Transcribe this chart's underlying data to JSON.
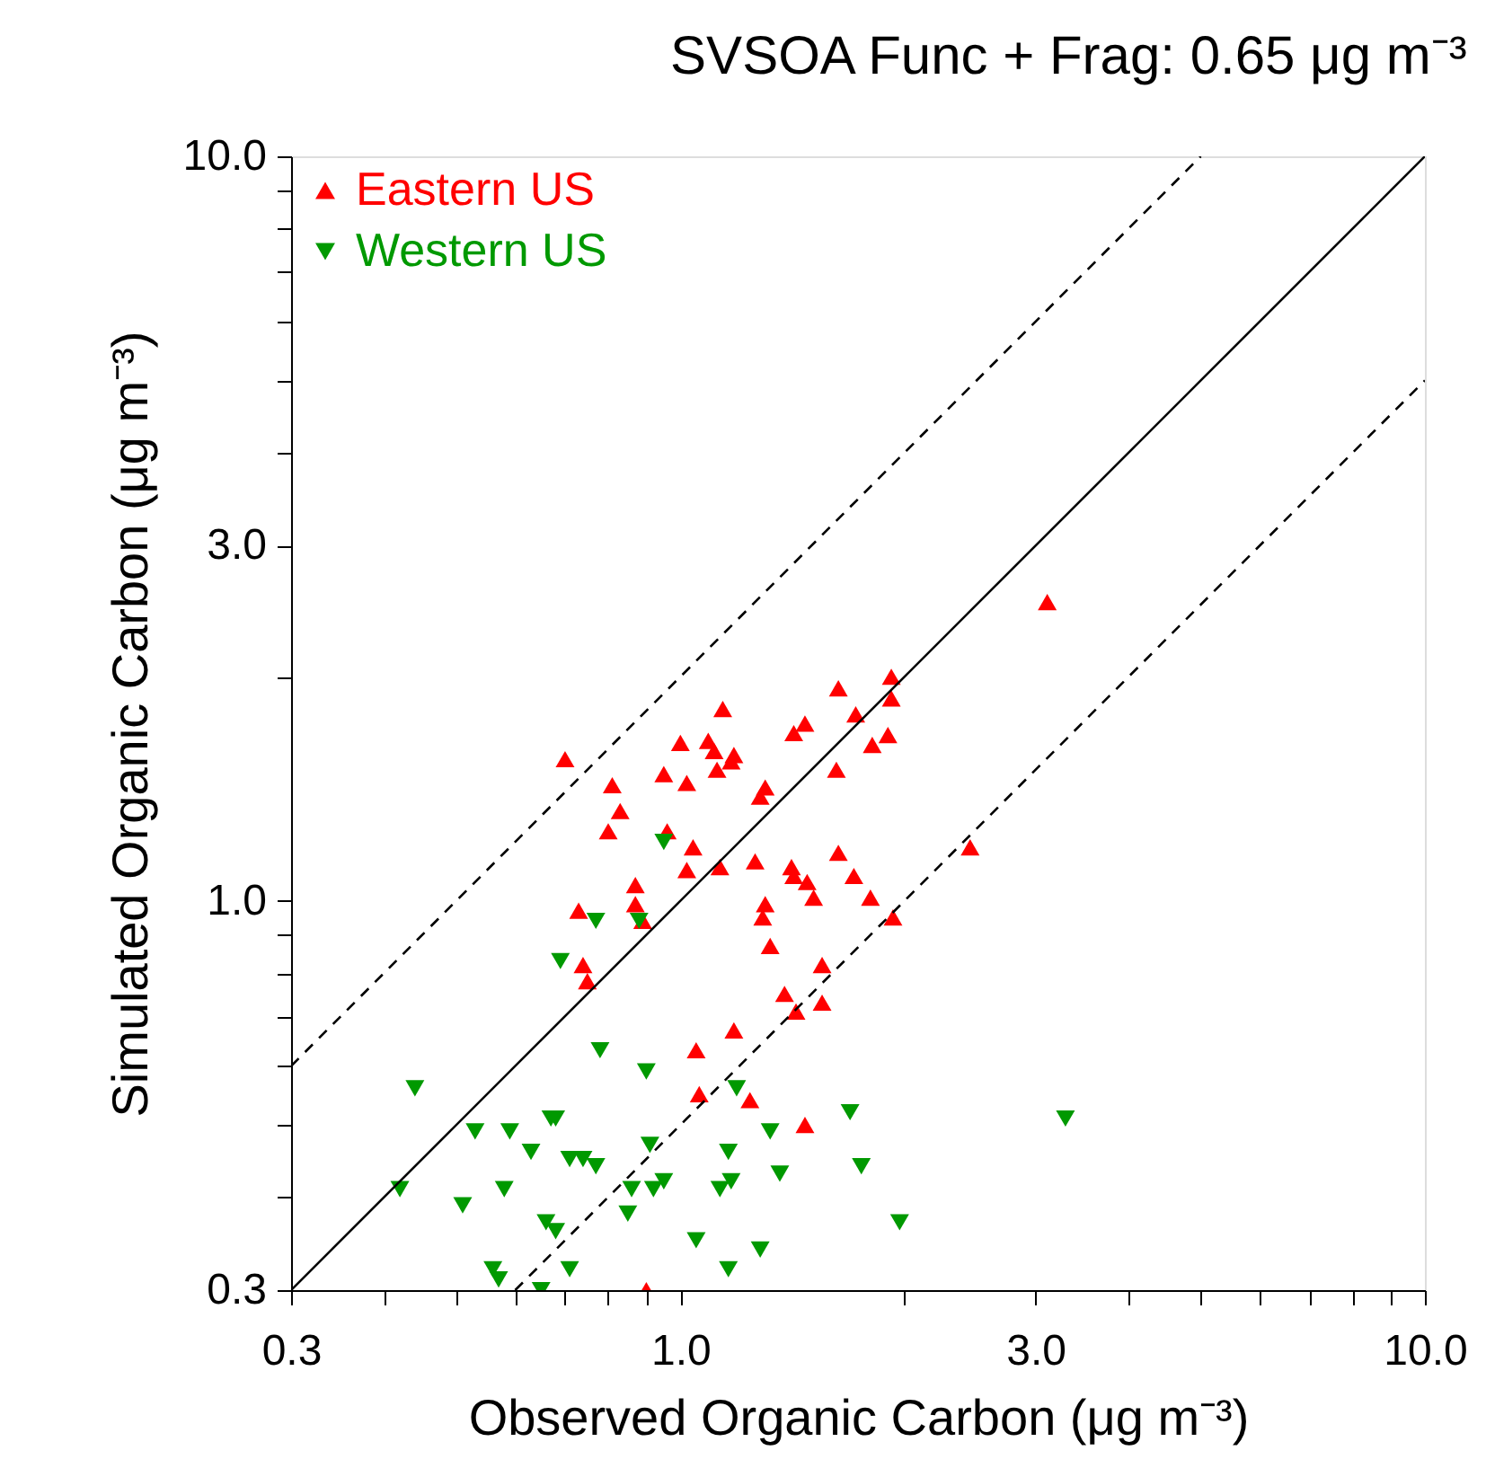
{
  "chart_data": {
    "type": "scatter",
    "title": "SVSOA Func + Frag: 0.65 μg m⁻³",
    "xlabel": "Observed Organic Carbon (μg m⁻³)",
    "ylabel": "Simulated Organic Carbon (μg m⁻³)",
    "log": "xy",
    "grid": false,
    "legend": "top left",
    "xlim": [
      0.3,
      10
    ],
    "ylim": [
      0.3,
      10
    ],
    "xticks": [
      {
        "value": 0.3,
        "label": "0.3"
      },
      {
        "value": 0.4,
        "label": null
      },
      {
        "value": 0.5,
        "label": null
      },
      {
        "value": 0.6,
        "label": null
      },
      {
        "value": 0.7,
        "label": null
      },
      {
        "value": 0.8,
        "label": null
      },
      {
        "value": 0.9,
        "label": null
      },
      {
        "value": 1,
        "label": "1.0"
      },
      {
        "value": 2,
        "label": null
      },
      {
        "value": 3,
        "label": "3.0"
      },
      {
        "value": 4,
        "label": null
      },
      {
        "value": 5,
        "label": null
      },
      {
        "value": 6,
        "label": null
      },
      {
        "value": 7,
        "label": null
      },
      {
        "value": 8,
        "label": null
      },
      {
        "value": 9,
        "label": null
      },
      {
        "value": 10,
        "label": "10.0"
      }
    ],
    "yticks": [
      {
        "value": 0.3,
        "label": "0.3"
      },
      {
        "value": 0.4,
        "label": null
      },
      {
        "value": 0.5,
        "label": null
      },
      {
        "value": 0.6,
        "label": null
      },
      {
        "value": 0.7,
        "label": null
      },
      {
        "value": 0.8,
        "label": null
      },
      {
        "value": 0.9,
        "label": null
      },
      {
        "value": 1,
        "label": "1.0"
      },
      {
        "value": 2,
        "label": null
      },
      {
        "value": 3,
        "label": "3.0"
      },
      {
        "value": 4,
        "label": null
      },
      {
        "value": 5,
        "label": null
      },
      {
        "value": 6,
        "label": null
      },
      {
        "value": 7,
        "label": null
      },
      {
        "value": 8,
        "label": null
      },
      {
        "value": 9,
        "label": null
      },
      {
        "value": 10,
        "label": "10.0"
      }
    ],
    "series": [
      {
        "name": "Eastern US",
        "color": "#ff0000",
        "marker": "triangle",
        "x": [
          3.11,
          1.63,
          1.92,
          1.92,
          1.14,
          1.72,
          1.47,
          1.42,
          1.9,
          1.81,
          1.0,
          1.09,
          1.11,
          1.18,
          1.17,
          1.12,
          0.7,
          1.62,
          0.95,
          1.02,
          0.81,
          1.3,
          1.28,
          0.83,
          0.8,
          0.96,
          1.04,
          2.45,
          1.63,
          1.26,
          1.41,
          1.13,
          1.02,
          1.42,
          1.48,
          1.71,
          0.87,
          1.51,
          1.8,
          1.3,
          0.87,
          1.29,
          1.93,
          0.73,
          0.89,
          1.32,
          0.74,
          1.55,
          0.75,
          1.38,
          1.43,
          1.55,
          1.18,
          1.05,
          1.06,
          1.24,
          1.47,
          0.9
        ],
        "values": [
          2.52,
          1.93,
          2.0,
          1.87,
          1.81,
          1.78,
          1.73,
          1.68,
          1.67,
          1.62,
          1.63,
          1.64,
          1.59,
          1.57,
          1.54,
          1.5,
          1.55,
          1.5,
          1.48,
          1.44,
          1.43,
          1.42,
          1.38,
          1.32,
          1.24,
          1.24,
          1.18,
          1.18,
          1.16,
          1.13,
          1.11,
          1.11,
          1.1,
          1.08,
          1.06,
          1.08,
          1.05,
          1.01,
          1.01,
          0.99,
          0.99,
          0.95,
          0.95,
          0.97,
          0.94,
          0.87,
          0.82,
          0.82,
          0.78,
          0.75,
          0.71,
          0.73,
          0.67,
          0.63,
          0.55,
          0.54,
          0.5,
          0.3
        ]
      },
      {
        "name": "Western US",
        "color": "#009900",
        "marker": "triangle-down",
        "x": [
          0.95,
          0.77,
          0.88,
          0.69,
          0.78,
          0.9,
          1.19,
          0.68,
          1.32,
          1.69,
          3.29,
          0.63,
          0.71,
          0.74,
          0.77,
          0.91,
          1.16,
          1.75,
          1.36,
          0.86,
          0.92,
          0.95,
          1.13,
          1.17,
          0.85,
          0.66,
          0.68,
          1.97,
          1.05,
          1.28,
          0.71,
          1.16,
          0.65,
          0.44,
          0.53,
          0.59,
          0.67,
          0.42,
          0.58,
          0.51,
          0.56,
          0.57
        ],
        "values": [
          1.2,
          0.94,
          0.94,
          0.83,
          0.63,
          0.59,
          0.56,
          0.51,
          0.49,
          0.52,
          0.51,
          0.46,
          0.45,
          0.45,
          0.44,
          0.47,
          0.46,
          0.44,
          0.43,
          0.41,
          0.41,
          0.42,
          0.41,
          0.42,
          0.38,
          0.37,
          0.36,
          0.37,
          0.35,
          0.34,
          0.32,
          0.32,
          0.3,
          0.56,
          0.49,
          0.49,
          0.51,
          0.41,
          0.41,
          0.39,
          0.32,
          0.31
        ]
      },
      {
        "type": "line",
        "color": "#000000",
        "line_style": "solid",
        "x": [
          0.3,
          10
        ],
        "values": [
          0.3,
          10
        ]
      },
      {
        "type": "line",
        "color": "#000000",
        "line_style": "dashed",
        "x": [
          0.3,
          5
        ],
        "values": [
          0.6,
          10
        ]
      },
      {
        "type": "line",
        "color": "#000000",
        "line_style": "dashed",
        "x": [
          0.6,
          10
        ],
        "values": [
          0.3,
          5
        ]
      }
    ]
  }
}
